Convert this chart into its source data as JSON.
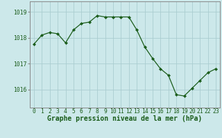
{
  "x": [
    0,
    1,
    2,
    3,
    4,
    5,
    6,
    7,
    8,
    9,
    10,
    11,
    12,
    13,
    14,
    15,
    16,
    17,
    18,
    19,
    20,
    21,
    22,
    23
  ],
  "y": [
    1017.75,
    1018.1,
    1018.2,
    1018.15,
    1017.8,
    1018.3,
    1018.55,
    1018.6,
    1018.85,
    1018.8,
    1018.8,
    1018.8,
    1018.8,
    1018.3,
    1017.65,
    1017.2,
    1016.8,
    1016.55,
    1015.8,
    1015.75,
    1016.05,
    1016.35,
    1016.65,
    1016.8
  ],
  "line_color": "#1a5c1a",
  "marker": "D",
  "marker_size": 2.2,
  "bg_color": "#cce8ea",
  "grid_color": "#aacdd0",
  "xlabel": "Graphe pression niveau de la mer (hPa)",
  "xlabel_fontsize": 7.0,
  "ytick_labels": [
    "1016",
    "1017",
    "1018",
    "1019"
  ],
  "ytick_vals": [
    1016,
    1017,
    1018,
    1019
  ],
  "xticks": [
    0,
    1,
    2,
    3,
    4,
    5,
    6,
    7,
    8,
    9,
    10,
    11,
    12,
    13,
    14,
    15,
    16,
    17,
    18,
    19,
    20,
    21,
    22,
    23
  ],
  "ylim": [
    1015.3,
    1019.4
  ],
  "xlim": [
    -0.5,
    23.5
  ],
  "tick_label_fontsize": 5.8,
  "tick_color": "#1a5c1a",
  "spine_color": "#888888",
  "linewidth": 0.9
}
